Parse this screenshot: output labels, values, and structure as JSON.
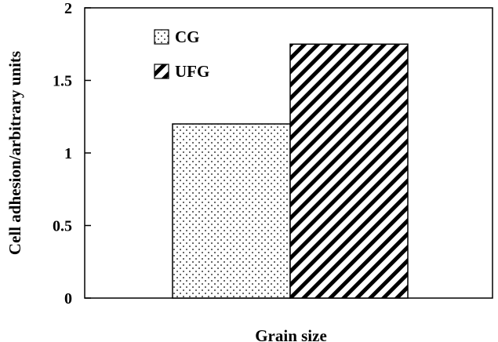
{
  "chart_data": {
    "type": "bar",
    "xlabel": "Grain size",
    "ylabel": "Cell adhesion/arbitrary units",
    "ylim": [
      0,
      2
    ],
    "yticks": [
      "0",
      "0.5",
      "1",
      "1.5",
      "2"
    ],
    "grid": false,
    "legend_position": "top-left",
    "series": [
      {
        "name": "CG",
        "value": 1.2,
        "pattern": "dots"
      },
      {
        "name": "UFG",
        "value": 1.75,
        "pattern": "diagonal-hatch"
      }
    ],
    "colors": {
      "fill": "#ffffff",
      "stroke": "#000000"
    }
  }
}
